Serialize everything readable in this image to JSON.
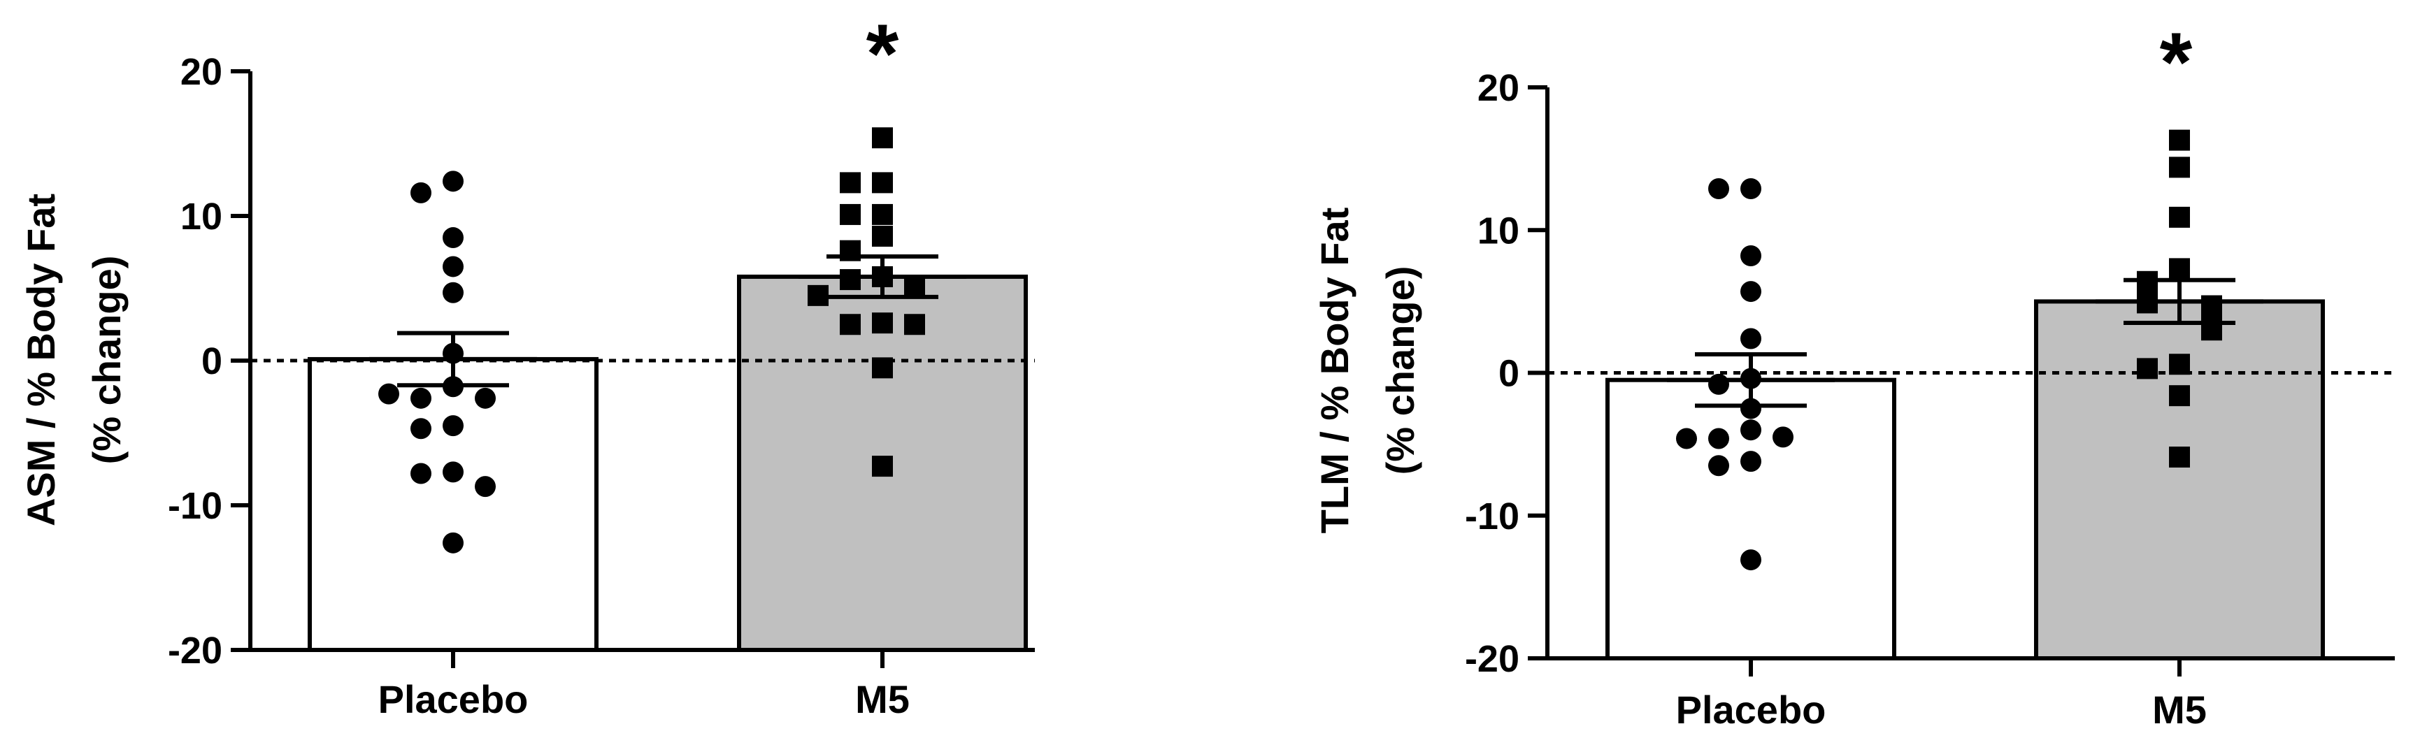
{
  "chart_data": [
    {
      "type": "bar",
      "categories": [
        "Placebo",
        "M5"
      ],
      "values": [
        0.1,
        5.8
      ],
      "error": [
        1.8,
        1.4
      ],
      "bar_colors": [
        "#ffffff",
        "#c0c0c0"
      ],
      "significance": [
        "",
        "*"
      ],
      "ylabel": "ASM / % Body Fat",
      "ylabel2": "(% change)",
      "ylim": [
        -20,
        20
      ],
      "yticks": [
        20,
        10,
        0,
        -10,
        -20
      ],
      "reference_line": 0,
      "points": [
        [
          12.4,
          11.6,
          8.5,
          6.5,
          4.7,
          0.5,
          -1.8,
          -2.6,
          -2.6,
          -2.3,
          -4.5,
          -4.7,
          -7.7,
          -7.8,
          -8.7,
          -12.6
        ],
        [
          15.4,
          12.3,
          12.3,
          10.1,
          10.1,
          8.6,
          7.6,
          5.8,
          5.6,
          5.2,
          4.5,
          2.6,
          2.5,
          2.5,
          -0.5,
          -7.3
        ]
      ],
      "point_markers": [
        "circle",
        "square"
      ]
    },
    {
      "type": "bar",
      "categories": [
        "Placebo",
        "M5"
      ],
      "values": [
        -0.5,
        5.0
      ],
      "error": [
        1.8,
        1.5
      ],
      "bar_colors": [
        "#ffffff",
        "#c0c0c0"
      ],
      "significance": [
        "",
        "*"
      ],
      "ylabel": "TLM / % Body Fat",
      "ylabel2": "(% change)",
      "ylim": [
        -20,
        20
      ],
      "yticks": [
        20,
        10,
        0,
        -10,
        -20
      ],
      "reference_line": 0,
      "points": [
        [
          12.9,
          12.9,
          8.2,
          5.7,
          2.4,
          -0.4,
          -0.8,
          -2.5,
          -4.0,
          -4.6,
          -4.5,
          -6.2,
          -6.5,
          -4.6,
          -13.1
        ],
        [
          16.3,
          14.4,
          10.9,
          7.3,
          6.4,
          5.3,
          4.9,
          4.7,
          3.8,
          3.4,
          3.0,
          0.6,
          0.3,
          -1.6,
          -5.9
        ]
      ],
      "point_markers": [
        "circle",
        "square"
      ]
    }
  ]
}
